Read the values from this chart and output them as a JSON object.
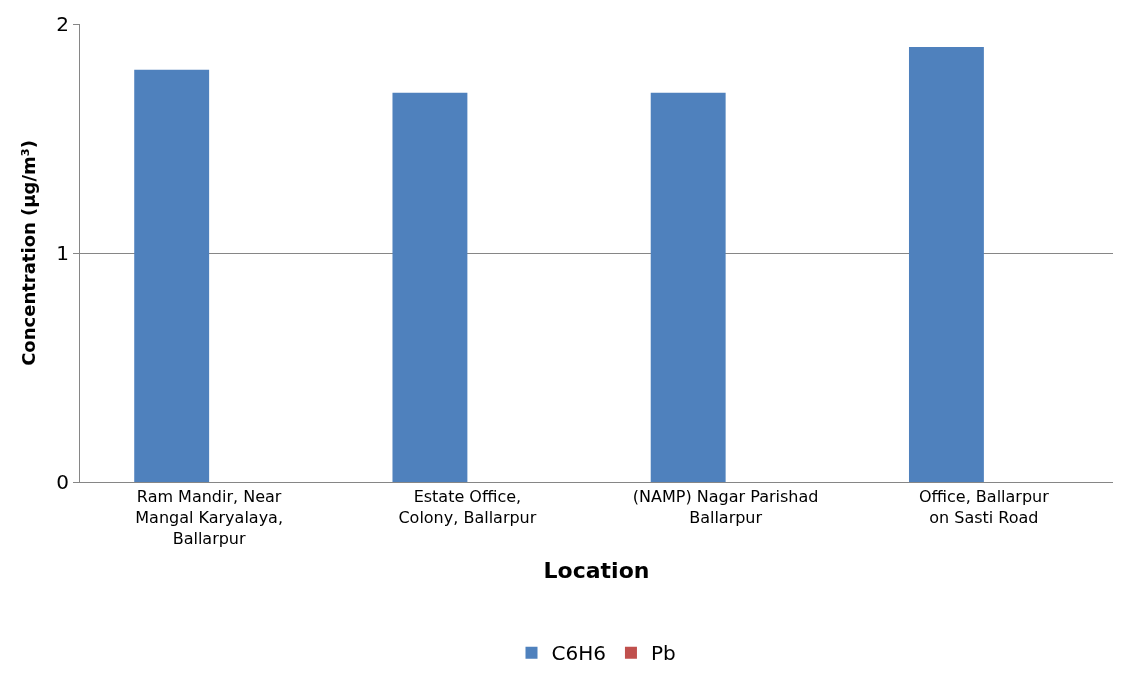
{
  "chart_data": {
    "type": "bar",
    "categories": [
      "Ram Mandir, Near\nMangal Karyalaya,\nBallarpur",
      "Estate Office,\nColony, Ballarpur",
      "(NAMP) Nagar Parishad\nBallarpur",
      "Office, Ballarpur\non Sasti Road"
    ],
    "series": [
      {
        "name": "C6H6",
        "color": "#4f81bd",
        "values": [
          1.8,
          1.7,
          1.7,
          1.9
        ]
      },
      {
        "name": "Pb",
        "color": "#c0504d",
        "values": [
          0,
          0,
          0,
          0
        ]
      }
    ],
    "xlabel": "Location",
    "ylabel": "Concentration (µg/m³)",
    "ylim": [
      0,
      2
    ],
    "yticks": [
      0,
      1,
      2
    ],
    "grid": "y",
    "legend": "bottom"
  }
}
